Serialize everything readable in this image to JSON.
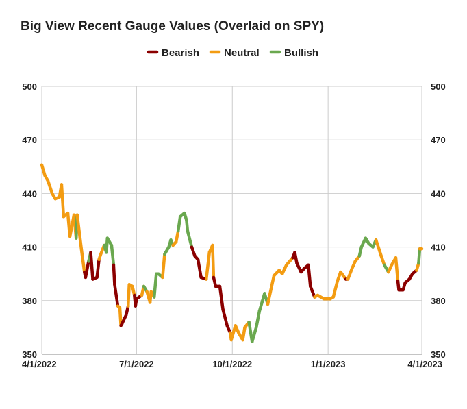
{
  "chart_data": {
    "type": "line",
    "title": "Big View Recent Gauge Values (Overlaid on SPY)",
    "xlabel": "",
    "ylabel": "",
    "ylim": [
      350,
      500
    ],
    "yticks": [
      350,
      380,
      410,
      440,
      470,
      500
    ],
    "xticks": [
      "4/1/2022",
      "7/1/2022",
      "10/1/2022",
      "1/1/2023",
      "4/1/2023"
    ],
    "legend": [
      "Bearish",
      "Neutral",
      "Bullish"
    ],
    "legend_position": "top",
    "gridlines": true,
    "colors": {
      "Bearish": "#8b0000",
      "Neutral": "#f39c12",
      "Bullish": "#6aa84f"
    },
    "points": [
      {
        "date": "2022-04-01",
        "value": 456,
        "state": "Bullish"
      },
      {
        "date": "2022-04-04",
        "value": 450,
        "state": "Neutral"
      },
      {
        "date": "2022-04-07",
        "value": 447,
        "state": "Neutral"
      },
      {
        "date": "2022-04-11",
        "value": 440,
        "state": "Neutral"
      },
      {
        "date": "2022-04-14",
        "value": 437,
        "state": "Neutral"
      },
      {
        "date": "2022-04-18",
        "value": 438,
        "state": "Neutral"
      },
      {
        "date": "2022-04-20",
        "value": 445,
        "state": "Neutral"
      },
      {
        "date": "2022-04-22",
        "value": 427,
        "state": "Neutral"
      },
      {
        "date": "2022-04-26",
        "value": 429,
        "state": "Neutral"
      },
      {
        "date": "2022-04-28",
        "value": 416,
        "state": "Neutral"
      },
      {
        "date": "2022-05-02",
        "value": 428,
        "state": "Neutral"
      },
      {
        "date": "2022-05-04",
        "value": 415,
        "state": "Neutral"
      },
      {
        "date": "2022-05-05",
        "value": 428,
        "state": "Bullish"
      },
      {
        "date": "2022-05-09",
        "value": 409,
        "state": "Neutral"
      },
      {
        "date": "2022-05-12",
        "value": 396,
        "state": "Neutral"
      },
      {
        "date": "2022-05-13",
        "value": 393,
        "state": "Bearish"
      },
      {
        "date": "2022-05-16",
        "value": 402,
        "state": "Bearish"
      },
      {
        "date": "2022-05-18",
        "value": 407,
        "state": "Bullish"
      },
      {
        "date": "2022-05-20",
        "value": 392,
        "state": "Bearish"
      },
      {
        "date": "2022-05-24",
        "value": 393,
        "state": "Bearish"
      },
      {
        "date": "2022-05-26",
        "value": 403,
        "state": "Bearish"
      },
      {
        "date": "2022-05-27",
        "value": 405,
        "state": "Neutral"
      },
      {
        "date": "2022-05-31",
        "value": 411,
        "state": "Neutral"
      },
      {
        "date": "2022-06-02",
        "value": 407,
        "state": "Bullish"
      },
      {
        "date": "2022-06-03",
        "value": 415,
        "state": "Bullish"
      },
      {
        "date": "2022-06-07",
        "value": 411,
        "state": "Bullish"
      },
      {
        "date": "2022-06-09",
        "value": 400,
        "state": "Bullish"
      },
      {
        "date": "2022-06-10",
        "value": 389,
        "state": "Bearish"
      },
      {
        "date": "2022-06-13",
        "value": 377,
        "state": "Bearish"
      },
      {
        "date": "2022-06-15",
        "value": 376,
        "state": "Neutral"
      },
      {
        "date": "2022-06-16",
        "value": 366,
        "state": "Neutral"
      },
      {
        "date": "2022-06-17",
        "value": 367,
        "state": "Bearish"
      },
      {
        "date": "2022-06-21",
        "value": 372,
        "state": "Bearish"
      },
      {
        "date": "2022-06-23",
        "value": 377,
        "state": "Bearish"
      },
      {
        "date": "2022-06-24",
        "value": 389,
        "state": "Neutral"
      },
      {
        "date": "2022-06-27",
        "value": 388,
        "state": "Neutral"
      },
      {
        "date": "2022-06-29",
        "value": 383,
        "state": "Neutral"
      },
      {
        "date": "2022-06-30",
        "value": 377,
        "state": "Bearish"
      },
      {
        "date": "2022-07-01",
        "value": 381,
        "state": "Bearish"
      },
      {
        "date": "2022-07-06",
        "value": 383,
        "state": "Bearish"
      },
      {
        "date": "2022-07-08",
        "value": 388,
        "state": "Neutral"
      },
      {
        "date": "2022-07-11",
        "value": 385,
        "state": "Bullish"
      },
      {
        "date": "2022-07-14",
        "value": 379,
        "state": "Neutral"
      },
      {
        "date": "2022-07-15",
        "value": 385,
        "state": "Neutral"
      },
      {
        "date": "2022-07-18",
        "value": 382,
        "state": "Neutral"
      },
      {
        "date": "2022-07-20",
        "value": 395,
        "state": "Bullish"
      },
      {
        "date": "2022-07-22",
        "value": 395,
        "state": "Bullish"
      },
      {
        "date": "2022-07-26",
        "value": 393,
        "state": "Bullish"
      },
      {
        "date": "2022-07-28",
        "value": 406,
        "state": "Neutral"
      },
      {
        "date": "2022-08-01",
        "value": 410,
        "state": "Bullish"
      },
      {
        "date": "2022-08-03",
        "value": 414,
        "state": "Bullish"
      },
      {
        "date": "2022-08-05",
        "value": 411,
        "state": "Bullish"
      },
      {
        "date": "2022-08-08",
        "value": 413,
        "state": "Neutral"
      },
      {
        "date": "2022-08-10",
        "value": 419,
        "state": "Neutral"
      },
      {
        "date": "2022-08-12",
        "value": 427,
        "state": "Bullish"
      },
      {
        "date": "2022-08-16",
        "value": 429,
        "state": "Bullish"
      },
      {
        "date": "2022-08-18",
        "value": 425,
        "state": "Bullish"
      },
      {
        "date": "2022-08-19",
        "value": 419,
        "state": "Bullish"
      },
      {
        "date": "2022-08-23",
        "value": 410,
        "state": "Bullish"
      },
      {
        "date": "2022-08-26",
        "value": 405,
        "state": "Bearish"
      },
      {
        "date": "2022-08-29",
        "value": 403,
        "state": "Bearish"
      },
      {
        "date": "2022-09-01",
        "value": 393,
        "state": "Bearish"
      },
      {
        "date": "2022-09-06",
        "value": 392,
        "state": "Bearish"
      },
      {
        "date": "2022-09-09",
        "value": 407,
        "state": "Neutral"
      },
      {
        "date": "2022-09-12",
        "value": 411,
        "state": "Neutral"
      },
      {
        "date": "2022-09-13",
        "value": 393,
        "state": "Neutral"
      },
      {
        "date": "2022-09-15",
        "value": 388,
        "state": "Bearish"
      },
      {
        "date": "2022-09-19",
        "value": 388,
        "state": "Bearish"
      },
      {
        "date": "2022-09-22",
        "value": 375,
        "state": "Bearish"
      },
      {
        "date": "2022-09-26",
        "value": 366,
        "state": "Bearish"
      },
      {
        "date": "2022-09-29",
        "value": 362,
        "state": "Bearish"
      },
      {
        "date": "2022-09-30",
        "value": 358,
        "state": "Neutral"
      },
      {
        "date": "2022-10-04",
        "value": 366,
        "state": "Neutral"
      },
      {
        "date": "2022-10-07",
        "value": 362,
        "state": "Neutral"
      },
      {
        "date": "2022-10-11",
        "value": 358,
        "state": "Neutral"
      },
      {
        "date": "2022-10-13",
        "value": 365,
        "state": "Neutral"
      },
      {
        "date": "2022-10-17",
        "value": 368,
        "state": "Neutral"
      },
      {
        "date": "2022-10-20",
        "value": 357,
        "state": "Bullish"
      },
      {
        "date": "2022-10-24",
        "value": 365,
        "state": "Bullish"
      },
      {
        "date": "2022-10-27",
        "value": 374,
        "state": "Bullish"
      },
      {
        "date": "2022-11-01",
        "value": 384,
        "state": "Bullish"
      },
      {
        "date": "2022-11-04",
        "value": 378,
        "state": "Bullish"
      },
      {
        "date": "2022-11-10",
        "value": 394,
        "state": "Neutral"
      },
      {
        "date": "2022-11-15",
        "value": 397,
        "state": "Neutral"
      },
      {
        "date": "2022-11-18",
        "value": 395,
        "state": "Neutral"
      },
      {
        "date": "2022-11-22",
        "value": 400,
        "state": "Neutral"
      },
      {
        "date": "2022-11-28",
        "value": 404,
        "state": "Neutral"
      },
      {
        "date": "2022-11-30",
        "value": 407,
        "state": "Bearish"
      },
      {
        "date": "2022-12-02",
        "value": 401,
        "state": "Bearish"
      },
      {
        "date": "2022-12-06",
        "value": 396,
        "state": "Bearish"
      },
      {
        "date": "2022-12-09",
        "value": 398,
        "state": "Bearish"
      },
      {
        "date": "2022-12-13",
        "value": 400,
        "state": "Bearish"
      },
      {
        "date": "2022-12-15",
        "value": 388,
        "state": "Bearish"
      },
      {
        "date": "2022-12-19",
        "value": 382,
        "state": "Bearish"
      },
      {
        "date": "2022-12-22",
        "value": 383,
        "state": "Neutral"
      },
      {
        "date": "2022-12-28",
        "value": 381,
        "state": "Neutral"
      },
      {
        "date": "2023-01-03",
        "value": 381,
        "state": "Neutral"
      },
      {
        "date": "2023-01-06",
        "value": 382,
        "state": "Neutral"
      },
      {
        "date": "2023-01-10",
        "value": 391,
        "state": "Neutral"
      },
      {
        "date": "2023-01-13",
        "value": 396,
        "state": "Neutral"
      },
      {
        "date": "2023-01-18",
        "value": 392,
        "state": "Neutral"
      },
      {
        "date": "2023-01-20",
        "value": 392,
        "state": "Bearish"
      },
      {
        "date": "2023-01-24",
        "value": 398,
        "state": "Neutral"
      },
      {
        "date": "2023-01-27",
        "value": 402,
        "state": "Neutral"
      },
      {
        "date": "2023-01-31",
        "value": 405,
        "state": "Neutral"
      },
      {
        "date": "2023-02-02",
        "value": 410,
        "state": "Bullish"
      },
      {
        "date": "2023-02-06",
        "value": 415,
        "state": "Bullish"
      },
      {
        "date": "2023-02-09",
        "value": 412,
        "state": "Bullish"
      },
      {
        "date": "2023-02-13",
        "value": 410,
        "state": "Bullish"
      },
      {
        "date": "2023-02-16",
        "value": 414,
        "state": "Bullish"
      },
      {
        "date": "2023-02-21",
        "value": 405,
        "state": "Neutral"
      },
      {
        "date": "2023-02-24",
        "value": 400,
        "state": "Neutral"
      },
      {
        "date": "2023-02-28",
        "value": 396,
        "state": "Bullish"
      },
      {
        "date": "2023-03-03",
        "value": 400,
        "state": "Neutral"
      },
      {
        "date": "2023-03-07",
        "value": 404,
        "state": "Neutral"
      },
      {
        "date": "2023-03-09",
        "value": 391,
        "state": "Neutral"
      },
      {
        "date": "2023-03-10",
        "value": 386,
        "state": "Bearish"
      },
      {
        "date": "2023-03-14",
        "value": 386,
        "state": "Bearish"
      },
      {
        "date": "2023-03-16",
        "value": 390,
        "state": "Bearish"
      },
      {
        "date": "2023-03-20",
        "value": 392,
        "state": "Bearish"
      },
      {
        "date": "2023-03-23",
        "value": 395,
        "state": "Bearish"
      },
      {
        "date": "2023-03-27",
        "value": 397,
        "state": "Bearish"
      },
      {
        "date": "2023-03-29",
        "value": 401,
        "state": "Neutral"
      },
      {
        "date": "2023-03-30",
        "value": 409,
        "state": "Bullish"
      },
      {
        "date": "2023-04-01",
        "value": 409,
        "state": "Neutral"
      }
    ]
  }
}
